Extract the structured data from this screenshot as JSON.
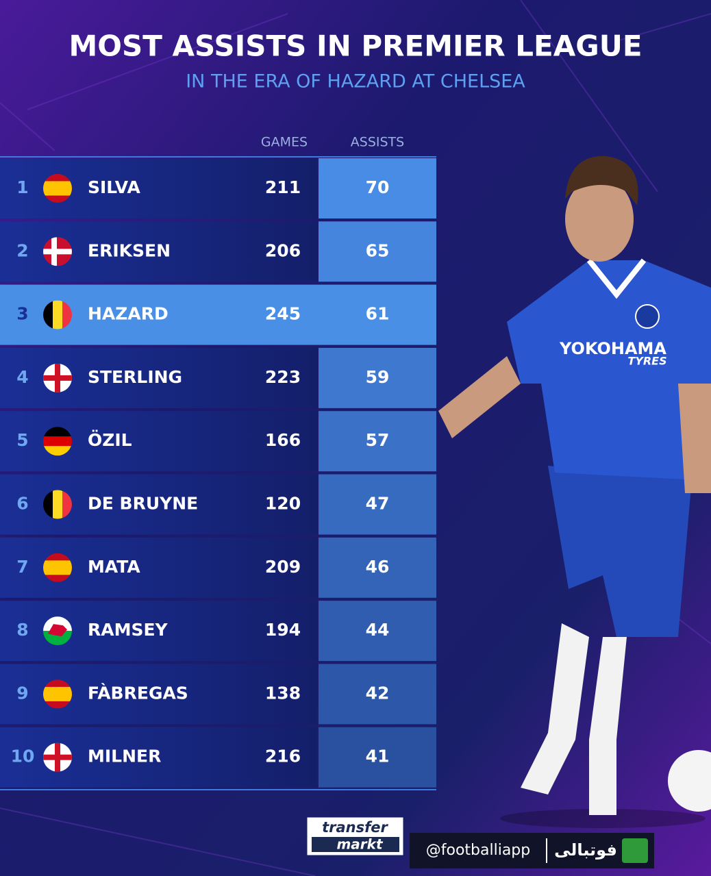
{
  "header": {
    "title": "MOST ASSISTS IN PREMIER LEAGUE",
    "subtitle": "IN THE ERA OF HAZARD AT CHELSEA"
  },
  "table": {
    "columns": [
      "GAMES",
      "ASSISTS"
    ],
    "rows": [
      {
        "rank": 1,
        "name": "SILVA",
        "games": 211,
        "assists": 70
      },
      {
        "rank": 2,
        "name": "ERIKSEN",
        "games": 206,
        "assists": 65
      },
      {
        "rank": 3,
        "name": "HAZARD",
        "games": 245,
        "assists": 61
      },
      {
        "rank": 4,
        "name": "STERLING",
        "games": 223,
        "assists": 59
      },
      {
        "rank": 5,
        "name": "ÖZIL",
        "games": 166,
        "assists": 57
      },
      {
        "rank": 6,
        "name": "DE BRUYNE",
        "games": 120,
        "assists": 47
      },
      {
        "rank": 7,
        "name": "MATA",
        "games": 209,
        "assists": 46
      },
      {
        "rank": 8,
        "name": "RAMSEY",
        "games": 194,
        "assists": 44
      },
      {
        "rank": 9,
        "name": "FÀBREGAS",
        "games": 138,
        "assists": 42
      },
      {
        "rank": 10,
        "name": "MILNER",
        "games": 216,
        "assists": 41
      }
    ]
  },
  "jersey": {
    "sponsor": "YOKOHAMA",
    "sponsor_sub": "TYRES"
  },
  "footer": {
    "logo": [
      "transfer",
      "markt"
    ],
    "handle": "@footballiapp",
    "brand": "فوتبالی"
  }
}
